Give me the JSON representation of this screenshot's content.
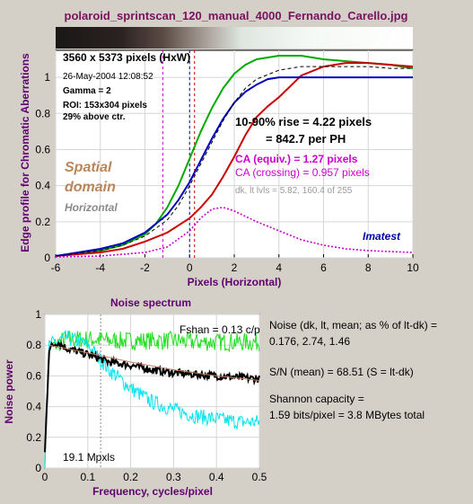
{
  "title": "polaroid_sprintscan_120_manual_4000_Fernando_Carello.jpg",
  "chart_data": [
    {
      "type": "line",
      "title": "",
      "xlabel": "Pixels (Horizontal)",
      "ylabel": "Edge profile for Chromatic Aberrations",
      "xlim": [
        -6,
        10
      ],
      "ylim": [
        0,
        1.15
      ],
      "xticks": [
        -6,
        -4,
        -2,
        0,
        2,
        4,
        6,
        8,
        10
      ],
      "yticks": [
        0,
        0.2,
        0.4,
        0.6,
        0.8,
        1
      ],
      "grid": true,
      "annotations": {
        "size": "3560 x 5373 pixels (HxW)",
        "date": "26-May-2004 12:08:52",
        "gamma": "Gamma = 2",
        "roi": "ROI: 153x304 pixels",
        "above": "29% above ctr.",
        "rise": "10-90% rise = 4.22 pixels",
        "per_ph": "= 842.7 per PH",
        "ca_equiv": "CA (equiv.) = 1.27 pixels",
        "ca_cross": "CA (crossing) = 0.957 pixels",
        "levels": "dk, lt lvls = 5.82, 160.4 of 255",
        "spatial": "Spatial",
        "domain": "domain",
        "horizontal": "Horizontal",
        "brand": "Imatest"
      },
      "series": [
        {
          "name": "",
          "color": "#00aa00",
          "x": [
            -6,
            -4,
            -3,
            -2,
            -1.5,
            -1,
            -0.5,
            0,
            0.5,
            1,
            1.5,
            2,
            2.5,
            3,
            4,
            5,
            6,
            7,
            8,
            9,
            10
          ],
          "y": [
            0.01,
            0.04,
            0.07,
            0.13,
            0.19,
            0.28,
            0.4,
            0.55,
            0.7,
            0.83,
            0.94,
            1.02,
            1.07,
            1.1,
            1.12,
            1.12,
            1.1,
            1.09,
            1.08,
            1.07,
            1.05
          ]
        },
        {
          "name": "",
          "color": "#cc0000",
          "x": [
            -6,
            -4,
            -3,
            -2,
            -1,
            0,
            0.5,
            1,
            1.5,
            2,
            2.5,
            3,
            3.5,
            4,
            4.5,
            5,
            6,
            7,
            8,
            9,
            10
          ],
          "y": [
            0.01,
            0.03,
            0.05,
            0.09,
            0.14,
            0.22,
            0.28,
            0.35,
            0.45,
            0.56,
            0.68,
            0.78,
            0.84,
            0.89,
            0.95,
            1.01,
            1.06,
            1.08,
            1.08,
            1.07,
            1.06
          ]
        },
        {
          "name": "",
          "color": "#0000bb",
          "x": [
            -6,
            -4,
            -3,
            -2,
            -1,
            -0.5,
            0,
            0.5,
            1,
            1.5,
            2,
            2.5,
            3,
            3.5,
            4,
            5,
            6,
            7,
            8,
            9,
            10
          ],
          "y": [
            0.01,
            0.05,
            0.08,
            0.14,
            0.24,
            0.32,
            0.42,
            0.54,
            0.66,
            0.77,
            0.86,
            0.92,
            0.96,
            0.99,
            1.0,
            1.0,
            1.0,
            1.0,
            1.0,
            1.0,
            1.0
          ]
        },
        {
          "name": "",
          "color": "#000000",
          "dash": true,
          "x": [
            -6,
            -4,
            -3,
            -2,
            -1,
            -0.5,
            0,
            0.5,
            1,
            1.5,
            2,
            2.5,
            3,
            4,
            5,
            6,
            7,
            8,
            9,
            10
          ],
          "y": [
            0.01,
            0.04,
            0.07,
            0.12,
            0.21,
            0.29,
            0.4,
            0.52,
            0.64,
            0.76,
            0.86,
            0.94,
            0.99,
            1.04,
            1.06,
            1.06,
            1.06,
            1.06,
            1.05,
            1.05
          ]
        },
        {
          "name": "",
          "color": "#cc00cc",
          "dot": true,
          "x": [
            -6,
            -4,
            -2,
            -1,
            0,
            0.5,
            1,
            1.5,
            2,
            3,
            4,
            5,
            6,
            7,
            8,
            9,
            10
          ],
          "y": [
            0.005,
            0.01,
            0.03,
            0.06,
            0.15,
            0.22,
            0.27,
            0.28,
            0.26,
            0.2,
            0.15,
            0.1,
            0.07,
            0.05,
            0.04,
            0.035,
            0.03
          ]
        }
      ]
    },
    {
      "type": "line",
      "title": "Noise spectrum",
      "xlabel": "Frequency, cycles/pixel",
      "ylabel": "Noise power",
      "xlim": [
        0,
        0.5
      ],
      "ylim": [
        0,
        1
      ],
      "xticks": [
        0,
        0.1,
        0.2,
        0.3,
        0.4,
        0.5
      ],
      "yticks": [
        0,
        0.2,
        0.4,
        0.6,
        0.8,
        1
      ],
      "grid": true,
      "annotations": {
        "fshan": "Fshan = 0.13 c/p",
        "mpxls": "19.1 Mpxls",
        "noise_label": "Noise (dk, lt, mean; as % of lt-dk) =",
        "noise_values": "0.176,  2.74,  1.46",
        "sn": "S/N (mean) = 68.51  (S = lt-dk)",
        "shannon_label": "Shannon capacity =",
        "shannon_value": "1.59 bits/pixel = 3.8 MBytes total"
      },
      "series": [
        {
          "name": "",
          "color": "#22dd22",
          "noise": 0.06,
          "x": [
            0,
            0.01,
            0.05,
            0.1,
            0.15,
            0.2,
            0.25,
            0.3,
            0.35,
            0.4,
            0.45,
            0.5
          ],
          "y": [
            0.05,
            0.78,
            0.84,
            0.84,
            0.83,
            0.83,
            0.83,
            0.83,
            0.82,
            0.82,
            0.82,
            0.82
          ]
        },
        {
          "name": "",
          "color": "#00e5ee",
          "noise": 0.05,
          "x": [
            0,
            0.01,
            0.05,
            0.1,
            0.15,
            0.2,
            0.25,
            0.3,
            0.35,
            0.4,
            0.45,
            0.5
          ],
          "y": [
            0.05,
            0.8,
            0.85,
            0.8,
            0.64,
            0.52,
            0.43,
            0.38,
            0.34,
            0.32,
            0.3,
            0.3
          ]
        },
        {
          "name": "",
          "color": "#000000",
          "noise": 0.025,
          "bold": true,
          "x": [
            0,
            0.01,
            0.03,
            0.05,
            0.1,
            0.15,
            0.2,
            0.25,
            0.3,
            0.35,
            0.4,
            0.45,
            0.5
          ],
          "y": [
            0.1,
            0.78,
            0.82,
            0.78,
            0.74,
            0.69,
            0.67,
            0.64,
            0.62,
            0.61,
            0.6,
            0.59,
            0.58
          ]
        },
        {
          "name": "",
          "color": "#c08060",
          "x": [
            0.01,
            0.1,
            0.2,
            0.3,
            0.4,
            0.5
          ],
          "y": [
            0.8,
            0.75,
            0.69,
            0.64,
            0.6,
            0.57
          ]
        }
      ]
    }
  ]
}
